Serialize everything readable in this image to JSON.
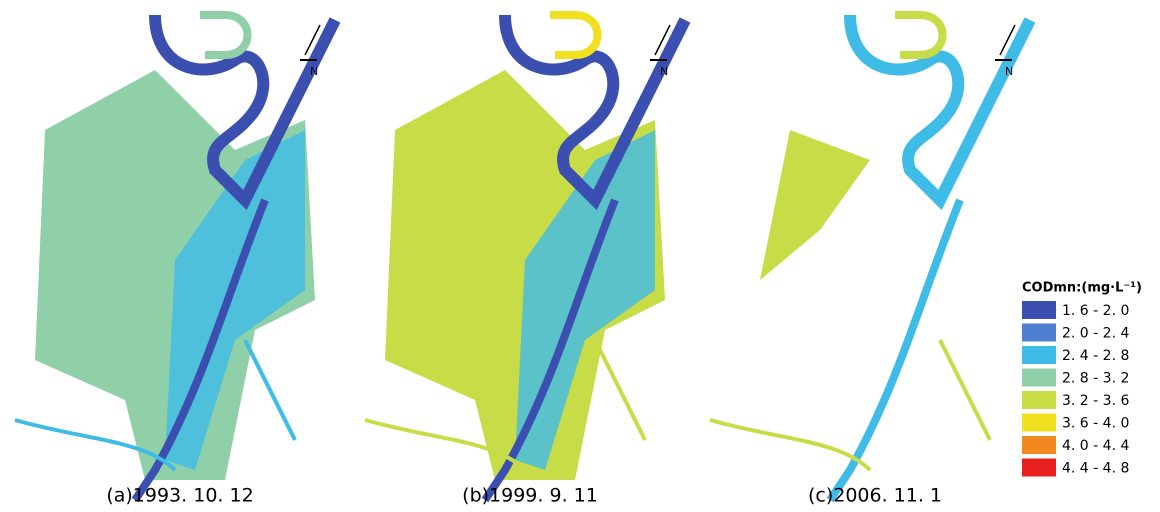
{
  "panels": [
    {
      "caption": "(a)1993. 10. 12",
      "north": "N"
    },
    {
      "caption": "(b)1999. 9. 11",
      "north": "N"
    },
    {
      "caption": "(c)2006. 11. 1",
      "north": "N"
    }
  ],
  "legend": {
    "title": "CODmn:(mg·L⁻¹)",
    "items": [
      {
        "label": "1. 6 - 2. 0",
        "color": "#3a4fb0"
      },
      {
        "label": "2. 0 - 2. 4",
        "color": "#4f7fd0"
      },
      {
        "label": "2. 4 - 2. 8",
        "color": "#3fbbe8"
      },
      {
        "label": "2. 8 - 3. 2",
        "color": "#8fd0a8"
      },
      {
        "label": "3. 2 - 3. 6",
        "color": "#c8dc48"
      },
      {
        "label": "3. 6 - 4. 0",
        "color": "#f0e020"
      },
      {
        "label": "4. 0 - 4. 4",
        "color": "#f08a20"
      },
      {
        "label": "4. 4 - 4. 8",
        "color": "#e82020"
      }
    ]
  }
}
